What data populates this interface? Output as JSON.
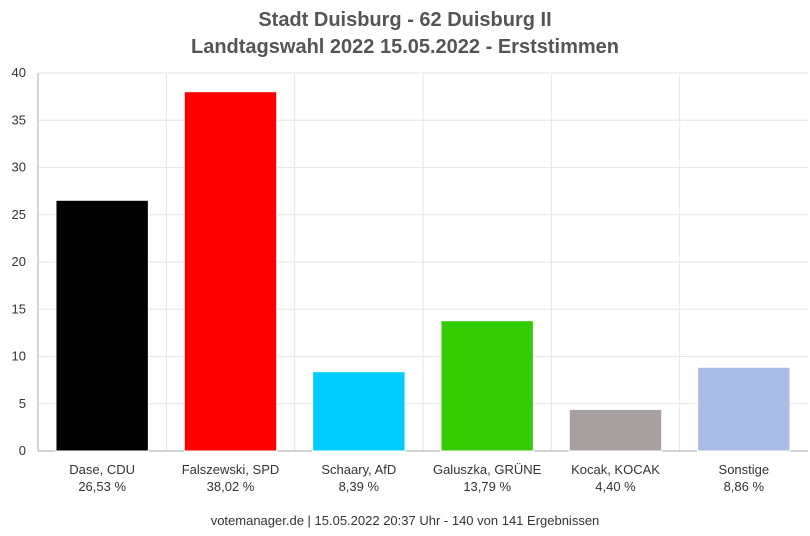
{
  "chart_data": {
    "type": "bar",
    "title_line1": "Stadt Duisburg - 62 Duisburg II",
    "title_line2": "Landtagswahl 2022 15.05.2022  - Erststimmen",
    "categories": [
      "Dase, CDU",
      "Falszewski, SPD",
      "Schaary, AfD",
      "Galuszka, GRÜNE",
      "Kocak, KOCAK",
      "Sonstige"
    ],
    "value_labels": [
      "26,53 %",
      "38,02 %",
      "8,39 %",
      "13,79 %",
      "4,40 %",
      "8,86 %"
    ],
    "values": [
      26.53,
      38.02,
      8.39,
      13.79,
      4.4,
      8.86
    ],
    "colors": [
      "#000000",
      "#ff0000",
      "#00ccff",
      "#33cc00",
      "#a8a0a0",
      "#aabde6"
    ],
    "ylim": [
      0,
      40
    ],
    "yticks": [
      0,
      5,
      10,
      15,
      20,
      25,
      30,
      35,
      40
    ],
    "grid": true,
    "xlabel": "",
    "ylabel": ""
  },
  "footer": "votemanager.de | 15.05.2022 20:37 Uhr - 140 von 141 Ergebnissen"
}
